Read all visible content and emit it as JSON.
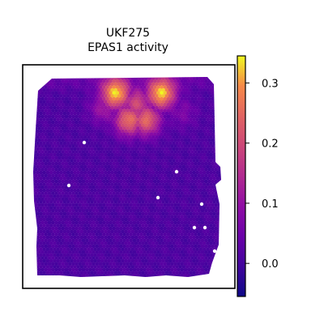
{
  "chart_data": {
    "type": "heatmap",
    "title_line1": "UKF275",
    "title_line2": "EPAS1 activity",
    "xlabel": "",
    "ylabel": "",
    "axis_ticks_shown": false,
    "colormap": "plasma",
    "colorbar": {
      "range": [
        -0.055,
        0.345
      ],
      "ticks": [
        0.0,
        0.1,
        0.2,
        0.3
      ],
      "tick_labels": [
        "0.0",
        "0.1",
        "0.2",
        "0.3"
      ],
      "placement": "right"
    },
    "hotspots": [
      {
        "x": 0.44,
        "y": 0.91,
        "value": 0.33
      },
      {
        "x": 0.68,
        "y": 0.91,
        "value": 0.33
      },
      {
        "x": 0.51,
        "y": 0.78,
        "value": 0.26
      },
      {
        "x": 0.6,
        "y": 0.78,
        "value": 0.25
      },
      {
        "x": 0.55,
        "y": 0.86,
        "value": 0.2
      },
      {
        "x": 0.38,
        "y": 0.84,
        "value": 0.12
      },
      {
        "x": 0.79,
        "y": 0.82,
        "value": 0.07
      }
    ],
    "background_value": 0.01,
    "value_at_top_edge": 0.08
  }
}
